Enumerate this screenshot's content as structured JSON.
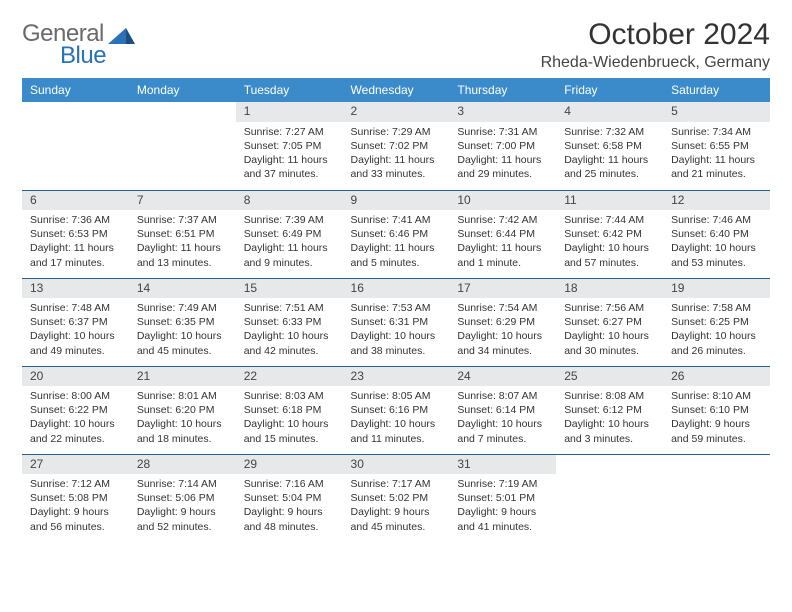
{
  "logo": {
    "general": "General",
    "blue": "Blue"
  },
  "header": {
    "month_title": "October 2024",
    "location": "Rheda-Wiedenbrueck, Germany"
  },
  "colors": {
    "header_bg": "#3b8bca",
    "header_text": "#ffffff",
    "row_divider": "#265f90",
    "daynum_bg": "#e7e8e9",
    "body_text": "#333333",
    "logo_gray": "#6a6a6a",
    "logo_blue": "#2a71b8"
  },
  "weekdays": [
    "Sunday",
    "Monday",
    "Tuesday",
    "Wednesday",
    "Thursday",
    "Friday",
    "Saturday"
  ],
  "weeks": [
    [
      null,
      null,
      {
        "n": "1",
        "sunrise": "Sunrise: 7:27 AM",
        "sunset": "Sunset: 7:05 PM",
        "day1": "Daylight: 11 hours",
        "day2": "and 37 minutes."
      },
      {
        "n": "2",
        "sunrise": "Sunrise: 7:29 AM",
        "sunset": "Sunset: 7:02 PM",
        "day1": "Daylight: 11 hours",
        "day2": "and 33 minutes."
      },
      {
        "n": "3",
        "sunrise": "Sunrise: 7:31 AM",
        "sunset": "Sunset: 7:00 PM",
        "day1": "Daylight: 11 hours",
        "day2": "and 29 minutes."
      },
      {
        "n": "4",
        "sunrise": "Sunrise: 7:32 AM",
        "sunset": "Sunset: 6:58 PM",
        "day1": "Daylight: 11 hours",
        "day2": "and 25 minutes."
      },
      {
        "n": "5",
        "sunrise": "Sunrise: 7:34 AM",
        "sunset": "Sunset: 6:55 PM",
        "day1": "Daylight: 11 hours",
        "day2": "and 21 minutes."
      }
    ],
    [
      {
        "n": "6",
        "sunrise": "Sunrise: 7:36 AM",
        "sunset": "Sunset: 6:53 PM",
        "day1": "Daylight: 11 hours",
        "day2": "and 17 minutes."
      },
      {
        "n": "7",
        "sunrise": "Sunrise: 7:37 AM",
        "sunset": "Sunset: 6:51 PM",
        "day1": "Daylight: 11 hours",
        "day2": "and 13 minutes."
      },
      {
        "n": "8",
        "sunrise": "Sunrise: 7:39 AM",
        "sunset": "Sunset: 6:49 PM",
        "day1": "Daylight: 11 hours",
        "day2": "and 9 minutes."
      },
      {
        "n": "9",
        "sunrise": "Sunrise: 7:41 AM",
        "sunset": "Sunset: 6:46 PM",
        "day1": "Daylight: 11 hours",
        "day2": "and 5 minutes."
      },
      {
        "n": "10",
        "sunrise": "Sunrise: 7:42 AM",
        "sunset": "Sunset: 6:44 PM",
        "day1": "Daylight: 11 hours",
        "day2": "and 1 minute."
      },
      {
        "n": "11",
        "sunrise": "Sunrise: 7:44 AM",
        "sunset": "Sunset: 6:42 PM",
        "day1": "Daylight: 10 hours",
        "day2": "and 57 minutes."
      },
      {
        "n": "12",
        "sunrise": "Sunrise: 7:46 AM",
        "sunset": "Sunset: 6:40 PM",
        "day1": "Daylight: 10 hours",
        "day2": "and 53 minutes."
      }
    ],
    [
      {
        "n": "13",
        "sunrise": "Sunrise: 7:48 AM",
        "sunset": "Sunset: 6:37 PM",
        "day1": "Daylight: 10 hours",
        "day2": "and 49 minutes."
      },
      {
        "n": "14",
        "sunrise": "Sunrise: 7:49 AM",
        "sunset": "Sunset: 6:35 PM",
        "day1": "Daylight: 10 hours",
        "day2": "and 45 minutes."
      },
      {
        "n": "15",
        "sunrise": "Sunrise: 7:51 AM",
        "sunset": "Sunset: 6:33 PM",
        "day1": "Daylight: 10 hours",
        "day2": "and 42 minutes."
      },
      {
        "n": "16",
        "sunrise": "Sunrise: 7:53 AM",
        "sunset": "Sunset: 6:31 PM",
        "day1": "Daylight: 10 hours",
        "day2": "and 38 minutes."
      },
      {
        "n": "17",
        "sunrise": "Sunrise: 7:54 AM",
        "sunset": "Sunset: 6:29 PM",
        "day1": "Daylight: 10 hours",
        "day2": "and 34 minutes."
      },
      {
        "n": "18",
        "sunrise": "Sunrise: 7:56 AM",
        "sunset": "Sunset: 6:27 PM",
        "day1": "Daylight: 10 hours",
        "day2": "and 30 minutes."
      },
      {
        "n": "19",
        "sunrise": "Sunrise: 7:58 AM",
        "sunset": "Sunset: 6:25 PM",
        "day1": "Daylight: 10 hours",
        "day2": "and 26 minutes."
      }
    ],
    [
      {
        "n": "20",
        "sunrise": "Sunrise: 8:00 AM",
        "sunset": "Sunset: 6:22 PM",
        "day1": "Daylight: 10 hours",
        "day2": "and 22 minutes."
      },
      {
        "n": "21",
        "sunrise": "Sunrise: 8:01 AM",
        "sunset": "Sunset: 6:20 PM",
        "day1": "Daylight: 10 hours",
        "day2": "and 18 minutes."
      },
      {
        "n": "22",
        "sunrise": "Sunrise: 8:03 AM",
        "sunset": "Sunset: 6:18 PM",
        "day1": "Daylight: 10 hours",
        "day2": "and 15 minutes."
      },
      {
        "n": "23",
        "sunrise": "Sunrise: 8:05 AM",
        "sunset": "Sunset: 6:16 PM",
        "day1": "Daylight: 10 hours",
        "day2": "and 11 minutes."
      },
      {
        "n": "24",
        "sunrise": "Sunrise: 8:07 AM",
        "sunset": "Sunset: 6:14 PM",
        "day1": "Daylight: 10 hours",
        "day2": "and 7 minutes."
      },
      {
        "n": "25",
        "sunrise": "Sunrise: 8:08 AM",
        "sunset": "Sunset: 6:12 PM",
        "day1": "Daylight: 10 hours",
        "day2": "and 3 minutes."
      },
      {
        "n": "26",
        "sunrise": "Sunrise: 8:10 AM",
        "sunset": "Sunset: 6:10 PM",
        "day1": "Daylight: 9 hours",
        "day2": "and 59 minutes."
      }
    ],
    [
      {
        "n": "27",
        "sunrise": "Sunrise: 7:12 AM",
        "sunset": "Sunset: 5:08 PM",
        "day1": "Daylight: 9 hours",
        "day2": "and 56 minutes."
      },
      {
        "n": "28",
        "sunrise": "Sunrise: 7:14 AM",
        "sunset": "Sunset: 5:06 PM",
        "day1": "Daylight: 9 hours",
        "day2": "and 52 minutes."
      },
      {
        "n": "29",
        "sunrise": "Sunrise: 7:16 AM",
        "sunset": "Sunset: 5:04 PM",
        "day1": "Daylight: 9 hours",
        "day2": "and 48 minutes."
      },
      {
        "n": "30",
        "sunrise": "Sunrise: 7:17 AM",
        "sunset": "Sunset: 5:02 PM",
        "day1": "Daylight: 9 hours",
        "day2": "and 45 minutes."
      },
      {
        "n": "31",
        "sunrise": "Sunrise: 7:19 AM",
        "sunset": "Sunset: 5:01 PM",
        "day1": "Daylight: 9 hours",
        "day2": "and 41 minutes."
      },
      null,
      null
    ]
  ]
}
